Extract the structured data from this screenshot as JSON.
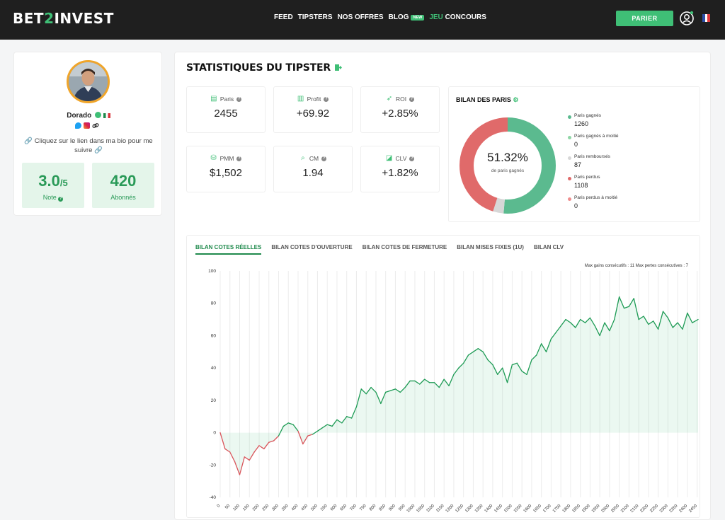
{
  "header": {
    "logo_left": "BET",
    "logo_mid": "2",
    "logo_right": "INVEST",
    "nav": [
      "FEED",
      "TIPSTERS",
      "NOS OFFRES",
      "BLOG"
    ],
    "blog_badge": "NEW",
    "jeu": "JEU",
    "concours": "CONCOURS",
    "cta": "PARIER"
  },
  "profile": {
    "username": "Dorado",
    "bio": "🔗 Cliquez sur le lien dans ma bio pour me suivre 🔗",
    "note_value": "3.0",
    "note_suffix": "/5",
    "note_label": "Note",
    "followers_value": "420",
    "followers_label": "Abonnés"
  },
  "stats": {
    "title": "STATISTIQUES DU TIPSTER",
    "metrics": [
      {
        "label": "Paris",
        "value": "2455",
        "icon": "ticket-icon"
      },
      {
        "label": "Profit",
        "value": "+69.92",
        "icon": "bar-chart-icon"
      },
      {
        "label": "ROI",
        "value": "+2.85%",
        "icon": "rocket-icon"
      },
      {
        "label": "PMM",
        "value": "$1,502",
        "icon": "coins-icon"
      },
      {
        "label": "CM",
        "value": "1.94",
        "icon": "magnifier-icon"
      },
      {
        "label": "CLV",
        "value": "+1.82%",
        "icon": "percent-icon"
      }
    ]
  },
  "bilan": {
    "title": "BILAN DES PARIS",
    "center_value": "51.32%",
    "center_label": "de paris gagnés",
    "items": [
      {
        "label": "Paris gagnés",
        "value": "1260",
        "color": "#5bba8f"
      },
      {
        "label": "Paris gagnés à moitié",
        "value": "0",
        "color": "#8fd6a6"
      },
      {
        "label": "Paris remboursés",
        "value": "87",
        "color": "#d7d7d7"
      },
      {
        "label": "Paris perdus",
        "value": "1108",
        "color": "#e06a6a"
      },
      {
        "label": "Paris perdus à moitié",
        "value": "0",
        "color": "#ef8d8d"
      }
    ]
  },
  "tabs": [
    "BILAN COTES RÉELLES",
    "BILAN COTES D'OUVERTURE",
    "BILAN COTES DE FERMETURE",
    "BILAN MISES FIXES (1U)",
    "BILAN CLV"
  ],
  "streaks": "Max gains consécutifs : 11   Max pertes consécutives : 7",
  "chart_data": {
    "type": "line",
    "title": "",
    "xlabel": "",
    "ylabel": "",
    "xlim": [
      0,
      2455
    ],
    "ylim": [
      -40,
      100
    ],
    "y_ticks": [
      -40,
      -20,
      0,
      20,
      40,
      60,
      80,
      100
    ],
    "x_ticks": [
      0,
      50,
      100,
      150,
      200,
      250,
      300,
      350,
      400,
      450,
      500,
      550,
      600,
      650,
      700,
      750,
      800,
      850,
      900,
      950,
      1000,
      1050,
      1100,
      1150,
      1200,
      1250,
      1300,
      1350,
      1400,
      1450,
      1500,
      1550,
      1600,
      1650,
      1700,
      1750,
      1800,
      1850,
      1900,
      1950,
      2000,
      2050,
      2100,
      2150,
      2200,
      2250,
      2300,
      2350,
      2400,
      2450
    ],
    "grid": "vertical",
    "positive_color": "#1e9b55",
    "negative_color": "#d9545a",
    "x": [
      0,
      25,
      50,
      75,
      100,
      125,
      150,
      175,
      200,
      225,
      250,
      275,
      300,
      325,
      350,
      375,
      400,
      425,
      450,
      475,
      500,
      525,
      550,
      575,
      600,
      625,
      650,
      675,
      700,
      725,
      750,
      775,
      800,
      825,
      850,
      875,
      900,
      925,
      950,
      975,
      1000,
      1025,
      1050,
      1075,
      1100,
      1125,
      1150,
      1175,
      1200,
      1225,
      1250,
      1275,
      1300,
      1325,
      1350,
      1375,
      1400,
      1425,
      1450,
      1475,
      1500,
      1525,
      1550,
      1575,
      1600,
      1625,
      1650,
      1675,
      1700,
      1725,
      1750,
      1775,
      1800,
      1825,
      1850,
      1875,
      1900,
      1925,
      1950,
      1975,
      2000,
      2025,
      2050,
      2075,
      2100,
      2125,
      2150,
      2175,
      2200,
      2225,
      2250,
      2275,
      2300,
      2325,
      2350,
      2375,
      2400,
      2425,
      2455
    ],
    "y": [
      0,
      -10,
      -12,
      -18,
      -26,
      -15,
      -17,
      -12,
      -8,
      -10,
      -6,
      -5,
      -2,
      4,
      6,
      5,
      1,
      -7,
      -2,
      -1,
      1,
      3,
      5,
      4,
      8,
      6,
      10,
      9,
      16,
      27,
      24,
      28,
      25,
      18,
      25,
      26,
      27,
      25,
      28,
      32,
      32,
      30,
      33,
      31,
      31,
      28,
      33,
      29,
      36,
      40,
      43,
      48,
      50,
      52,
      50,
      45,
      42,
      36,
      40,
      31,
      42,
      43,
      38,
      36,
      45,
      48,
      55,
      50,
      58,
      62,
      66,
      70,
      68,
      65,
      70,
      68,
      71,
      66,
      60,
      68,
      63,
      70,
      84,
      77,
      78,
      83,
      70,
      72,
      67,
      69,
      64,
      75,
      71,
      65,
      68,
      64,
      74,
      68,
      70
    ]
  }
}
